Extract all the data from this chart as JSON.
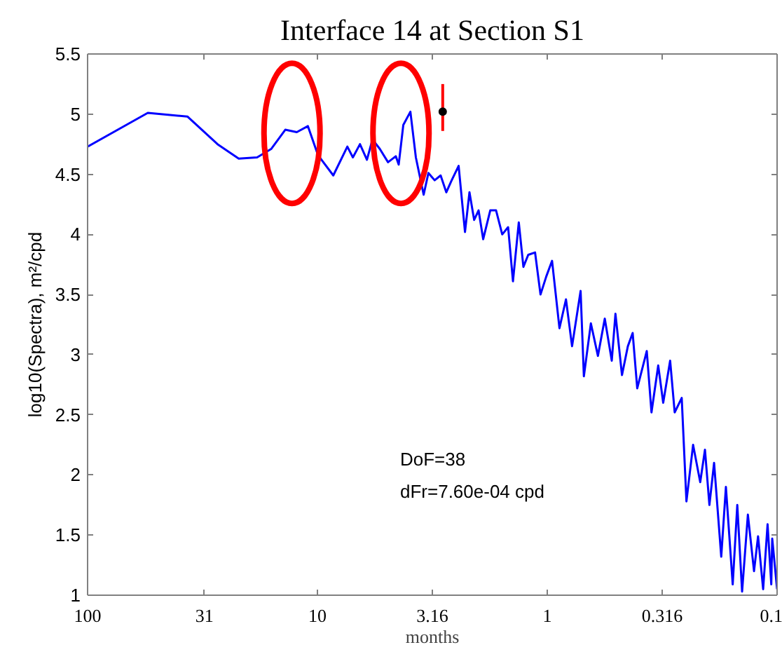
{
  "chart_data": {
    "type": "line",
    "title": "Interface 14 at Section S1",
    "xlabel": "months",
    "ylabel": "log10(Spectra), m²/cpd",
    "log": "x",
    "grid": false,
    "line_style": "solid",
    "xlim": [
      100,
      0.1
    ],
    "ylim": [
      1,
      5.5
    ],
    "xticks": [
      100,
      31,
      10,
      3.16,
      1,
      0.316,
      0.1
    ],
    "yticks": [
      1,
      1.5,
      2,
      2.5,
      3,
      3.5,
      4,
      4.5,
      5,
      5.5
    ],
    "annotations": [
      "DoF=38",
      "dFr=7.60e-04 cpd"
    ],
    "series": [
      {
        "color": "#0000ff",
        "x": [
          100,
          54.7,
          36.8,
          27.2,
          22.0,
          18.3,
          15.9,
          13.8,
          12.3,
          11.0,
          9.95,
          8.53,
          7.41,
          7.01,
          6.53,
          6.09,
          5.76,
          5.35,
          4.93,
          4.56,
          4.43,
          4.23,
          3.94,
          3.73,
          3.45,
          3.29,
          3.09,
          2.91,
          2.75,
          2.62,
          2.43,
          2.28,
          2.18,
          2.08,
          1.99,
          1.9,
          1.77,
          1.67,
          1.57,
          1.48,
          1.41,
          1.33,
          1.27,
          1.21,
          1.13,
          1.07,
          1.01,
          0.953,
          0.885,
          0.829,
          0.78,
          0.716,
          0.693,
          0.646,
          0.602,
          0.562,
          0.524,
          0.505,
          0.473,
          0.446,
          0.425,
          0.406,
          0.369,
          0.352,
          0.329,
          0.313,
          0.292,
          0.279,
          0.26,
          0.248,
          0.232,
          0.216,
          0.206,
          0.197,
          0.188,
          0.175,
          0.167,
          0.156,
          0.149,
          0.142,
          0.134,
          0.126,
          0.121,
          0.115,
          0.11,
          0.106,
          0.105,
          0.1
        ],
        "values": [
          4.73,
          5.01,
          4.98,
          4.75,
          4.63,
          4.64,
          4.71,
          4.87,
          4.85,
          4.9,
          4.66,
          4.49,
          4.73,
          4.64,
          4.75,
          4.62,
          4.79,
          4.71,
          4.6,
          4.65,
          4.58,
          4.91,
          5.02,
          4.64,
          4.33,
          4.51,
          4.45,
          4.49,
          4.35,
          4.44,
          4.57,
          4.02,
          4.35,
          4.12,
          4.2,
          3.96,
          4.2,
          4.2,
          4.0,
          4.06,
          3.61,
          4.1,
          3.73,
          3.83,
          3.85,
          3.5,
          3.65,
          3.78,
          3.22,
          3.46,
          3.07,
          3.53,
          2.82,
          3.26,
          2.99,
          3.3,
          2.95,
          3.34,
          2.83,
          3.07,
          3.18,
          2.72,
          3.03,
          2.52,
          2.91,
          2.6,
          2.95,
          2.52,
          2.64,
          1.78,
          2.25,
          1.94,
          2.21,
          1.75,
          2.1,
          1.32,
          1.9,
          1.09,
          1.75,
          1.03,
          1.67,
          1.2,
          1.49,
          1.05,
          1.59,
          1.09,
          1.47,
          1.05
        ]
      },
      {
        "type": "scatter",
        "marker": "circle",
        "color": "#000000",
        "x": [
          2.85
        ],
        "values": [
          5.02
        ],
        "errors": [
          [
            4.86,
            5.25
          ]
        ]
      }
    ]
  }
}
